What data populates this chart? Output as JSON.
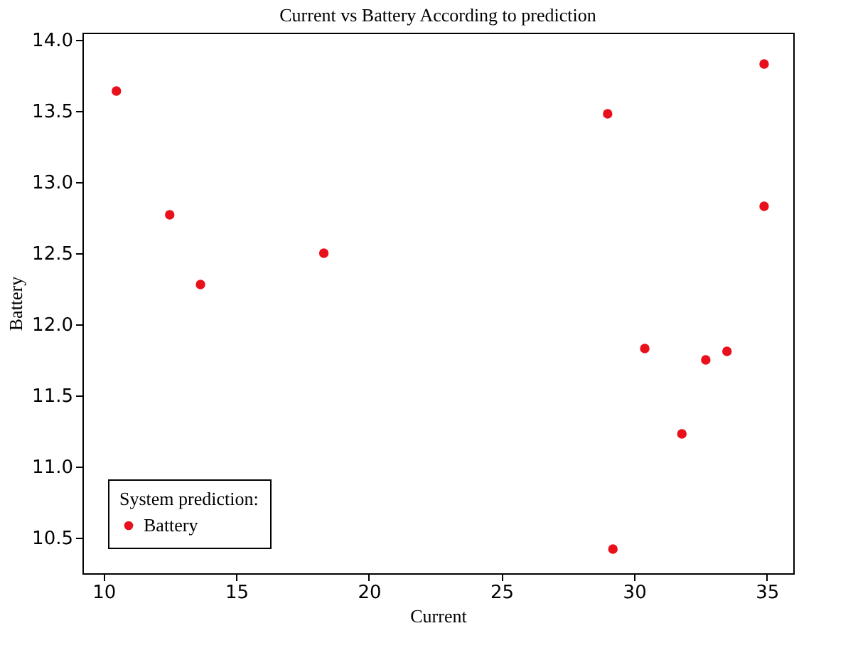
{
  "chart_data": {
    "type": "scatter",
    "title": "Current vs Battery According to prediction",
    "xlabel": "Current",
    "ylabel": "Battery",
    "legend_title": "System prediction:",
    "x": [
      10.48,
      12.49,
      13.65,
      18.3,
      29.0,
      34.9,
      34.9,
      30.4,
      32.7,
      31.8,
      33.5,
      29.2
    ],
    "series": [
      {
        "name": "Battery",
        "color": "#e8101a",
        "values": [
          13.64,
          12.77,
          12.28,
          12.5,
          13.48,
          13.83,
          12.83,
          11.83,
          11.75,
          11.23,
          11.81,
          10.42
        ]
      }
    ],
    "xlim": [
      9.2,
      36.0
    ],
    "ylim": [
      10.25,
      14.05
    ],
    "xticks": [
      10,
      15,
      20,
      25,
      30,
      35
    ],
    "yticks": [
      10.5,
      {
        "value": 11,
        "label": "11.0"
      },
      11.5,
      {
        "value": 12,
        "label": "12.0"
      },
      12.5,
      {
        "value": 13,
        "label": "13.0"
      },
      13.5,
      {
        "value": 14,
        "label": "14.0"
      }
    ],
    "legend": "bottom left",
    "grid": false,
    "marker": "circle"
  }
}
